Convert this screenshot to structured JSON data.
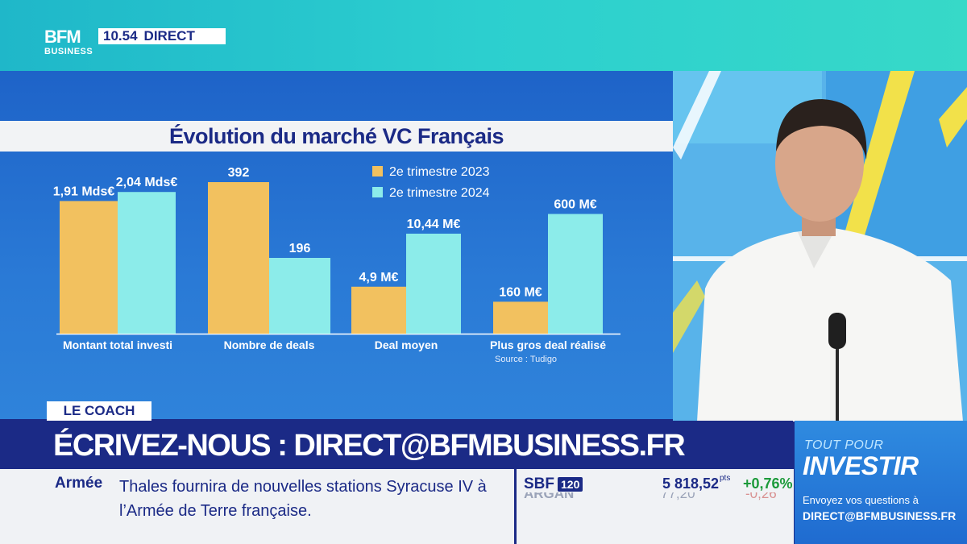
{
  "channel": {
    "logo_line1": "BFM",
    "logo_line2": "BUSINESS",
    "time": "10.54",
    "live_label": "DIRECT"
  },
  "chart_data": {
    "type": "bar",
    "title": "Évolution du marché VC Français",
    "categories": [
      "Montant total investi",
      "Nombre de deals",
      "Deal moyen",
      "Plus gros deal réalisé"
    ],
    "series": [
      {
        "name": "2e trimestre 2023",
        "color": "#f2c15f",
        "labels": [
          "1,91 Mds€",
          "392",
          "4,9 M€",
          "160 M€"
        ]
      },
      {
        "name": "2e trimestre 2024",
        "color": "#8cecea",
        "labels": [
          "2,04 Mds€",
          "196",
          "10,44 M€",
          "600 M€"
        ]
      }
    ],
    "source": "Source : Tudigo",
    "legend_position": "top-center",
    "grid": false
  },
  "lower_third": {
    "tag": "LE COACH",
    "headline": "ÉCRIVEZ-NOUS : DIRECT@BFMBUSINESS.FR"
  },
  "ticker": {
    "news_kicker": "Armée",
    "news_text": "Thales fournira de nouvelles stations Syracuse IV à l’Armée de Terre française.",
    "index_name": "SBF",
    "index_number": "120",
    "index_value": "5 818,52",
    "index_unit": "pts",
    "index_change": "+0,76%",
    "next_name": "ARGAN",
    "next_value": "77,20",
    "next_change": "-0,26"
  },
  "promo": {
    "kicker": "TOUT POUR",
    "brand": "INVESTIR",
    "line1": "Envoyez vos questions à",
    "line2": "DIRECT@BFMBUSINESS.FR"
  },
  "colors": {
    "navy": "#1b2a86",
    "q2_2023": "#f2c15f",
    "q2_2024": "#8cecea",
    "positive": "#1c9a3a"
  }
}
